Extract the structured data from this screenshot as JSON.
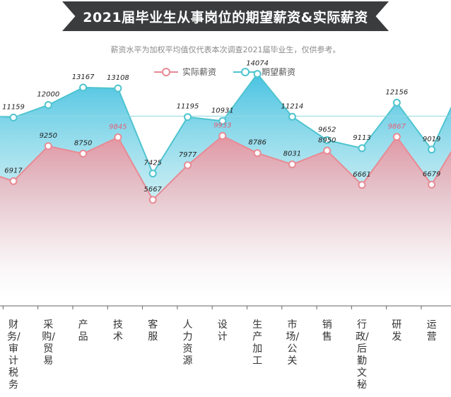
{
  "header": {
    "title": "2021届毕业生从事岗位的期望薪资&实际薪资",
    "subtitle": "薪资水平为加权平均值仅代表本次调查2021届毕业生，仅供参考。"
  },
  "legend": {
    "actual_label": "实际薪资",
    "expected_label": "期望薪资"
  },
  "colors": {
    "actual": "#e88a94",
    "expected": "#4ec4cf",
    "highlight": "#e0607a",
    "banner": "#3a3c3e"
  },
  "chart_data": {
    "type": "line",
    "categories": [
      "财务/审计税务",
      "采购/贸易",
      "产品",
      "技术",
      "客服",
      "人力资源",
      "设计",
      "生产加工",
      "市场/公关",
      "销售",
      "行政/后勤文秘",
      "研发",
      "运营"
    ],
    "series": [
      {
        "name": "期望薪资",
        "values": [
          11159,
          12000,
          13167,
          13108,
          7425,
          11195,
          10931,
          14074,
          11214,
          9652,
          9113,
          12156,
          9019
        ],
        "labels": [
          "11159",
          "12000",
          "13167",
          "13108",
          "7425",
          "11195",
          "10931",
          "14074",
          "11214",
          "9652",
          "9113",
          "12156",
          "9019"
        ]
      },
      {
        "name": "实际薪资",
        "values": [
          6917,
          9250,
          8750,
          9845,
          5667,
          7977,
          9933,
          8786,
          8031,
          8950,
          6661,
          9867,
          6679
        ],
        "labels": [
          "6917",
          "9250",
          "8750",
          "9845",
          "5667",
          "7977",
          "9933",
          "8786",
          "8031",
          "8950",
          "6661",
          "9867",
          "6679"
        ],
        "highlighted": [
          3,
          6,
          11
        ]
      }
    ],
    "grid": false,
    "legend_position": "top-center"
  },
  "axis": {
    "category_labels": [
      "财务/审计 税务",
      "采购/贸易",
      "产品",
      "技术",
      "客服",
      "人力资源",
      "设计",
      "生产加工",
      "市场/公关",
      "销售",
      "行政/后勤文秘",
      "研发",
      "运营"
    ]
  }
}
